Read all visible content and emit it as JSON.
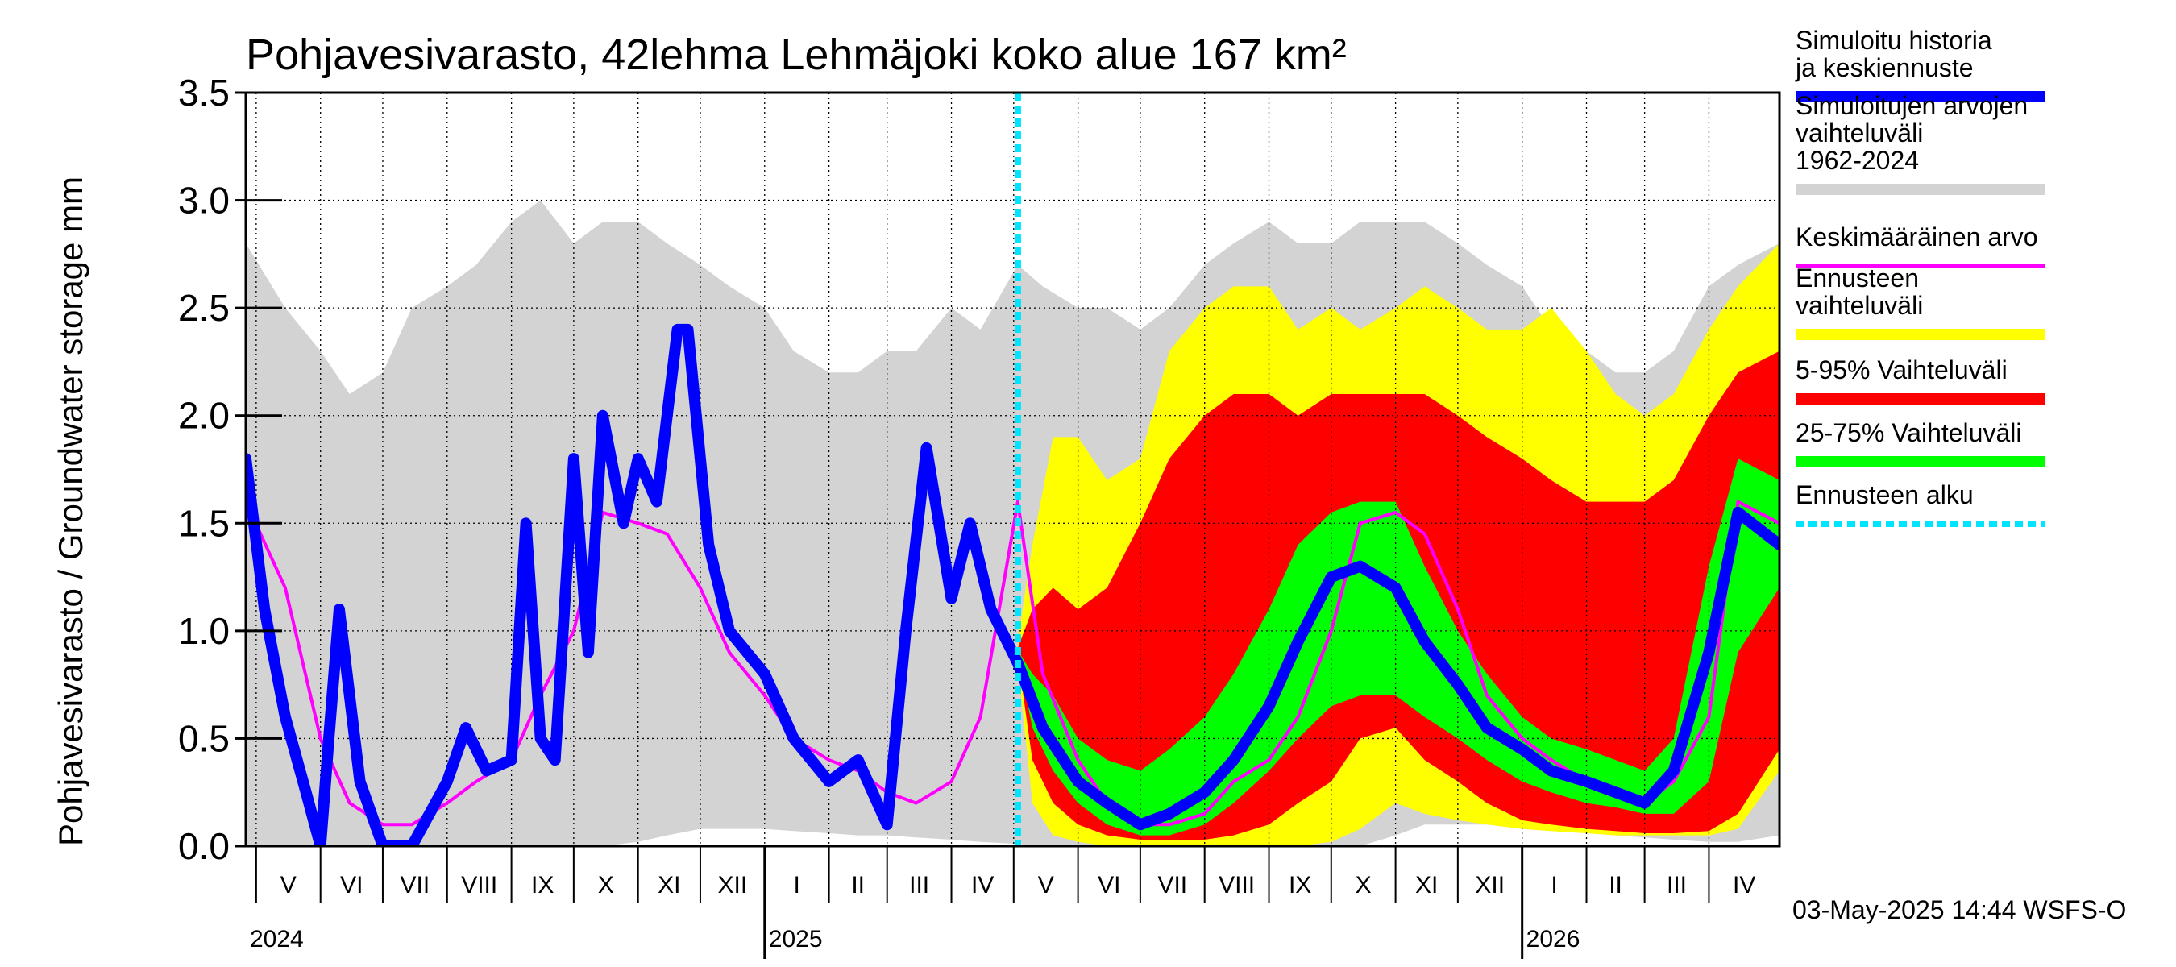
{
  "chart_data": {
    "type": "area",
    "title": "Pohjavesivarasto, 42lehma Lehmäjoki koko alue 167 km²",
    "ylabel": "Pohjavesivarasto / Groundwater storage   mm",
    "ylim": [
      0,
      3.5
    ],
    "yticks": [
      "0.0",
      "0.5",
      "1.0",
      "1.5",
      "2.0",
      "2.5",
      "3.0",
      "3.5"
    ],
    "xlim": [
      "2024-04-26",
      "2026-05-05"
    ],
    "grid": true,
    "legend_position": "right",
    "month_labels": [
      {
        "label": "V",
        "date": "2024-05-01"
      },
      {
        "label": "VI",
        "date": "2024-06-01"
      },
      {
        "label": "VII",
        "date": "2024-07-01"
      },
      {
        "label": "VIII",
        "date": "2024-08-01"
      },
      {
        "label": "IX",
        "date": "2024-09-01"
      },
      {
        "label": "X",
        "date": "2024-10-01"
      },
      {
        "label": "XI",
        "date": "2024-11-01"
      },
      {
        "label": "XII",
        "date": "2024-12-01"
      },
      {
        "label": "I",
        "date": "2025-01-01"
      },
      {
        "label": "II",
        "date": "2025-02-01"
      },
      {
        "label": "III",
        "date": "2025-03-01"
      },
      {
        "label": "IV",
        "date": "2025-04-01"
      },
      {
        "label": "V",
        "date": "2025-05-01"
      },
      {
        "label": "VI",
        "date": "2025-06-01"
      },
      {
        "label": "VII",
        "date": "2025-07-01"
      },
      {
        "label": "VIII",
        "date": "2025-08-01"
      },
      {
        "label": "IX",
        "date": "2025-09-01"
      },
      {
        "label": "X",
        "date": "2025-10-01"
      },
      {
        "label": "XI",
        "date": "2025-11-01"
      },
      {
        "label": "XII",
        "date": "2025-12-01"
      },
      {
        "label": "I",
        "date": "2026-01-01"
      },
      {
        "label": "II",
        "date": "2026-02-01"
      },
      {
        "label": "III",
        "date": "2026-03-01"
      },
      {
        "label": "IV",
        "date": "2026-04-01"
      }
    ],
    "year_labels": [
      {
        "label": "2024",
        "date": "2024-04-26"
      },
      {
        "label": "2025",
        "date": "2025-01-01"
      },
      {
        "label": "2026",
        "date": "2026-01-01"
      }
    ],
    "forecast_start": "2025-05-03",
    "series": [
      {
        "name": "Simuloitujen arvojen vaihteluväli 1962-2024",
        "color": "#d3d3d3",
        "kind": "band",
        "x": [
          "2024-04-26",
          "2024-05-15",
          "2024-06-01",
          "2024-06-15",
          "2024-07-01",
          "2024-07-15",
          "2024-08-01",
          "2024-08-15",
          "2024-09-01",
          "2024-09-15",
          "2024-10-01",
          "2024-10-15",
          "2024-11-01",
          "2024-11-15",
          "2024-12-01",
          "2024-12-15",
          "2025-01-01",
          "2025-01-15",
          "2025-02-01",
          "2025-02-15",
          "2025-03-01",
          "2025-03-15",
          "2025-04-01",
          "2025-04-15",
          "2025-05-03",
          "2025-05-15",
          "2025-06-01",
          "2025-06-15",
          "2025-07-01",
          "2025-07-15",
          "2025-08-01",
          "2025-08-15",
          "2025-09-01",
          "2025-09-15",
          "2025-10-01",
          "2025-10-15",
          "2025-11-01",
          "2025-11-15",
          "2025-12-01",
          "2025-12-15",
          "2026-01-01",
          "2026-01-15",
          "2026-02-01",
          "2026-02-15",
          "2026-03-01",
          "2026-03-15",
          "2026-04-01",
          "2026-04-15",
          "2026-05-05"
        ],
        "low": [
          0.0,
          0.0,
          0.0,
          0.0,
          0.0,
          0.0,
          0.0,
          0.0,
          0.0,
          0.0,
          0.0,
          0.0,
          0.02,
          0.05,
          0.08,
          0.08,
          0.08,
          0.07,
          0.06,
          0.05,
          0.05,
          0.04,
          0.03,
          0.02,
          0.01,
          0.0,
          0.0,
          0.0,
          0.0,
          0.0,
          0.0,
          0.0,
          0.0,
          0.0,
          0.0,
          0.0,
          0.05,
          0.1,
          0.1,
          0.1,
          0.08,
          0.07,
          0.06,
          0.05,
          0.04,
          0.03,
          0.02,
          0.02,
          0.05
        ],
        "high": [
          2.8,
          2.5,
          2.3,
          2.1,
          2.2,
          2.5,
          2.6,
          2.7,
          2.9,
          3.0,
          2.8,
          2.9,
          2.9,
          2.8,
          2.7,
          2.6,
          2.5,
          2.3,
          2.2,
          2.2,
          2.3,
          2.3,
          2.5,
          2.4,
          2.7,
          2.6,
          2.5,
          2.5,
          2.4,
          2.5,
          2.7,
          2.8,
          2.9,
          2.8,
          2.8,
          2.9,
          2.9,
          2.9,
          2.8,
          2.7,
          2.6,
          2.4,
          2.3,
          2.2,
          2.2,
          2.3,
          2.6,
          2.7,
          2.8
        ]
      },
      {
        "name": "Ennusteen vaihteluväli",
        "color": "#ffff00",
        "kind": "band",
        "x": [
          "2025-05-03",
          "2025-05-10",
          "2025-05-20",
          "2025-06-01",
          "2025-06-15",
          "2025-07-01",
          "2025-07-15",
          "2025-08-01",
          "2025-08-15",
          "2025-09-01",
          "2025-09-15",
          "2025-10-01",
          "2025-10-15",
          "2025-11-01",
          "2025-11-15",
          "2025-12-01",
          "2025-12-15",
          "2026-01-01",
          "2026-01-15",
          "2026-02-01",
          "2026-02-15",
          "2026-03-01",
          "2026-03-15",
          "2026-04-01",
          "2026-04-15",
          "2026-05-05"
        ],
        "low": [
          0.85,
          0.2,
          0.05,
          0.02,
          0.0,
          0.0,
          0.0,
          0.0,
          0.0,
          0.0,
          0.0,
          0.02,
          0.08,
          0.2,
          0.15,
          0.12,
          0.1,
          0.08,
          0.07,
          0.06,
          0.05,
          0.05,
          0.05,
          0.05,
          0.08,
          0.35
        ],
        "high": [
          0.95,
          1.4,
          1.9,
          1.9,
          1.7,
          1.8,
          2.3,
          2.5,
          2.6,
          2.6,
          2.4,
          2.5,
          2.4,
          2.5,
          2.6,
          2.5,
          2.4,
          2.4,
          2.5,
          2.3,
          2.1,
          2.0,
          2.1,
          2.4,
          2.6,
          2.8
        ]
      },
      {
        "name": "5-95% Vaihteluväli",
        "color": "#ff0000",
        "kind": "band",
        "x": [
          "2025-05-03",
          "2025-05-10",
          "2025-05-20",
          "2025-06-01",
          "2025-06-15",
          "2025-07-01",
          "2025-07-15",
          "2025-08-01",
          "2025-08-15",
          "2025-09-01",
          "2025-09-15",
          "2025-10-01",
          "2025-10-15",
          "2025-11-01",
          "2025-11-15",
          "2025-12-01",
          "2025-12-15",
          "2026-01-01",
          "2026-01-15",
          "2026-02-01",
          "2026-02-15",
          "2026-03-01",
          "2026-03-15",
          "2026-04-01",
          "2026-04-15",
          "2026-05-05"
        ],
        "low": [
          0.88,
          0.4,
          0.2,
          0.1,
          0.05,
          0.03,
          0.03,
          0.03,
          0.05,
          0.1,
          0.2,
          0.3,
          0.5,
          0.55,
          0.4,
          0.3,
          0.2,
          0.12,
          0.1,
          0.08,
          0.07,
          0.06,
          0.06,
          0.07,
          0.15,
          0.45
        ],
        "high": [
          0.92,
          1.1,
          1.2,
          1.1,
          1.2,
          1.5,
          1.8,
          2.0,
          2.1,
          2.1,
          2.0,
          2.1,
          2.1,
          2.1,
          2.1,
          2.0,
          1.9,
          1.8,
          1.7,
          1.6,
          1.6,
          1.6,
          1.7,
          2.0,
          2.2,
          2.3
        ]
      },
      {
        "name": "25-75% Vaihteluväli",
        "color": "#00ff00",
        "kind": "band",
        "x": [
          "2025-05-03",
          "2025-05-10",
          "2025-05-20",
          "2025-06-01",
          "2025-06-15",
          "2025-07-01",
          "2025-07-15",
          "2025-08-01",
          "2025-08-15",
          "2025-09-01",
          "2025-09-15",
          "2025-10-01",
          "2025-10-15",
          "2025-11-01",
          "2025-11-15",
          "2025-12-01",
          "2025-12-15",
          "2026-01-01",
          "2026-01-15",
          "2026-02-01",
          "2026-02-15",
          "2026-03-01",
          "2026-03-15",
          "2026-04-01",
          "2026-04-15",
          "2026-05-05"
        ],
        "low": [
          0.89,
          0.55,
          0.35,
          0.2,
          0.1,
          0.05,
          0.05,
          0.1,
          0.2,
          0.35,
          0.5,
          0.65,
          0.7,
          0.7,
          0.6,
          0.5,
          0.4,
          0.3,
          0.25,
          0.2,
          0.18,
          0.15,
          0.15,
          0.3,
          0.9,
          1.2
        ],
        "high": [
          0.91,
          0.8,
          0.7,
          0.5,
          0.4,
          0.35,
          0.45,
          0.6,
          0.8,
          1.1,
          1.4,
          1.55,
          1.6,
          1.6,
          1.3,
          1.0,
          0.8,
          0.6,
          0.5,
          0.45,
          0.4,
          0.35,
          0.5,
          1.3,
          1.8,
          1.7
        ]
      },
      {
        "name": "Keskimääräinen arvo",
        "color": "#ff00ff",
        "kind": "line",
        "x": [
          "2024-04-26",
          "2024-05-15",
          "2024-06-01",
          "2024-06-15",
          "2024-07-01",
          "2024-07-15",
          "2024-08-01",
          "2024-08-15",
          "2024-09-01",
          "2024-09-15",
          "2024-10-01",
          "2024-10-15",
          "2024-11-01",
          "2024-11-15",
          "2024-12-01",
          "2024-12-15",
          "2025-01-01",
          "2025-01-15",
          "2025-02-01",
          "2025-02-15",
          "2025-03-01",
          "2025-03-15",
          "2025-04-01",
          "2025-04-15",
          "2025-05-03",
          "2025-05-15",
          "2025-06-01",
          "2025-06-15",
          "2025-07-01",
          "2025-07-15",
          "2025-08-01",
          "2025-08-15",
          "2025-09-01",
          "2025-09-15",
          "2025-10-01",
          "2025-10-15",
          "2025-11-01",
          "2025-11-15",
          "2025-12-01",
          "2025-12-15",
          "2026-01-01",
          "2026-01-15",
          "2026-02-01",
          "2026-02-15",
          "2026-03-01",
          "2026-03-15",
          "2026-04-01",
          "2026-04-15",
          "2026-05-05"
        ],
        "y": [
          1.6,
          1.2,
          0.5,
          0.2,
          0.1,
          0.1,
          0.2,
          0.3,
          0.4,
          0.7,
          1.0,
          1.55,
          1.5,
          1.45,
          1.2,
          0.9,
          0.7,
          0.5,
          0.4,
          0.35,
          0.25,
          0.2,
          0.3,
          0.6,
          1.6,
          0.8,
          0.4,
          0.2,
          0.1,
          0.1,
          0.15,
          0.3,
          0.4,
          0.6,
          1.0,
          1.5,
          1.55,
          1.45,
          1.1,
          0.7,
          0.5,
          0.4,
          0.3,
          0.25,
          0.2,
          0.3,
          0.6,
          1.6,
          1.5
        ]
      },
      {
        "name": "Simuloitu historia ja keskiennuste",
        "color": "#0000ff",
        "kind": "line",
        "x": [
          "2024-04-26",
          "2024-05-05",
          "2024-05-15",
          "2024-05-25",
          "2024-06-01",
          "2024-06-05",
          "2024-06-10",
          "2024-06-20",
          "2024-07-01",
          "2024-07-15",
          "2024-08-01",
          "2024-08-10",
          "2024-08-20",
          "2024-09-01",
          "2024-09-08",
          "2024-09-15",
          "2024-09-22",
          "2024-10-01",
          "2024-10-08",
          "2024-10-15",
          "2024-10-25",
          "2024-11-01",
          "2024-11-10",
          "2024-11-20",
          "2024-11-25",
          "2024-12-05",
          "2024-12-15",
          "2025-01-01",
          "2025-01-15",
          "2025-02-01",
          "2025-02-15",
          "2025-03-01",
          "2025-03-10",
          "2025-03-20",
          "2025-04-01",
          "2025-04-10",
          "2025-04-20",
          "2025-05-03",
          "2025-05-15",
          "2025-06-01",
          "2025-06-15",
          "2025-07-01",
          "2025-07-15",
          "2025-08-01",
          "2025-08-15",
          "2025-09-01",
          "2025-09-15",
          "2025-10-01",
          "2025-10-15",
          "2025-11-01",
          "2025-11-15",
          "2025-12-01",
          "2025-12-15",
          "2026-01-01",
          "2026-01-15",
          "2026-02-01",
          "2026-02-15",
          "2026-03-01",
          "2026-03-15",
          "2026-04-01",
          "2026-04-15",
          "2026-05-05"
        ],
        "y": [
          1.8,
          1.1,
          0.6,
          0.25,
          0.0,
          0.5,
          1.1,
          0.3,
          0.0,
          0.0,
          0.3,
          0.55,
          0.35,
          0.4,
          1.5,
          0.5,
          0.4,
          1.8,
          0.9,
          2.0,
          1.5,
          1.8,
          1.6,
          2.4,
          2.4,
          1.4,
          1.0,
          0.8,
          0.5,
          0.3,
          0.4,
          0.1,
          1.0,
          1.85,
          1.15,
          1.5,
          1.1,
          0.85,
          0.55,
          0.3,
          0.2,
          0.1,
          0.15,
          0.25,
          0.4,
          0.65,
          0.95,
          1.25,
          1.3,
          1.2,
          0.95,
          0.75,
          0.55,
          0.45,
          0.35,
          0.3,
          0.25,
          0.2,
          0.35,
          0.9,
          1.55,
          1.4
        ]
      }
    ],
    "legend": [
      {
        "label": "Simuloitu historia ja keskiennuste",
        "color": "#0000ff",
        "style": "solid"
      },
      {
        "label": "Simuloitujen arvojen vaihteluväli 1962-2024",
        "color": "#d3d3d3",
        "style": "solid"
      },
      {
        "label": "Keskimääräinen arvo",
        "color": "#ff00ff",
        "style": "thin"
      },
      {
        "label": "Ennusteen vaihteluväli",
        "color": "#ffff00",
        "style": "solid"
      },
      {
        "label": "5-95% Vaihteluväli",
        "color": "#ff0000",
        "style": "solid"
      },
      {
        "label": "25-75% Vaihteluväli",
        "color": "#00ff00",
        "style": "solid"
      },
      {
        "label": "Ennusteen alku",
        "color": "#00e5ff",
        "style": "dotted"
      }
    ],
    "footer": "03-May-2025 14:44 WSFS-O"
  }
}
